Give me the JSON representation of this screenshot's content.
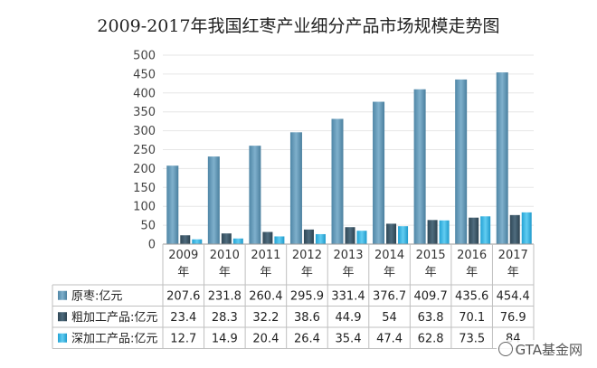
{
  "chart_data": {
    "type": "bar",
    "title": "2009-2017年我国红枣产业细分产品市场规模走势图",
    "categories": [
      [
        "2009",
        "年"
      ],
      [
        "2010",
        "年"
      ],
      [
        "2011",
        "年"
      ],
      [
        "2012",
        "年"
      ],
      [
        "2013",
        "年"
      ],
      [
        "2014",
        "年"
      ],
      [
        "2015",
        "年"
      ],
      [
        "2016",
        "年"
      ],
      [
        "2017",
        "年"
      ]
    ],
    "ylim": [
      0,
      500
    ],
    "yticks": [
      "0",
      "50",
      "100",
      "150",
      "200",
      "250",
      "300",
      "350",
      "400",
      "450",
      "500"
    ],
    "grid": true,
    "series": [
      {
        "name": "原枣:亿元",
        "color": "#5b93b3",
        "values": [
          207.6,
          231.8,
          260.4,
          295.9,
          331.4,
          376.7,
          409.7,
          435.6,
          454.4
        ],
        "labels": [
          "207.6",
          "231.8",
          "260.4",
          "295.9",
          "331.4",
          "376.7",
          "409.7",
          "435.6",
          "454.4"
        ]
      },
      {
        "name": "粗加工产品:亿元",
        "color": "#3a5566",
        "values": [
          23.4,
          28.3,
          32.2,
          38.6,
          44.9,
          54,
          63.8,
          70.1,
          76.9
        ],
        "labels": [
          "23.4",
          "28.3",
          "32.2",
          "38.6",
          "44.9",
          "54",
          "63.8",
          "70.1",
          "76.9"
        ]
      },
      {
        "name": "深加工产品:亿元",
        "color": "#35b3e2",
        "values": [
          12.7,
          14.9,
          20.4,
          26.4,
          35.4,
          47.4,
          62.8,
          73.5,
          84
        ],
        "labels": [
          "12.7",
          "14.9",
          "20.4",
          "26.4",
          "35.4",
          "47.4",
          "62.8",
          "73.5",
          "84"
        ]
      }
    ]
  },
  "watermark": "GTA基金网"
}
